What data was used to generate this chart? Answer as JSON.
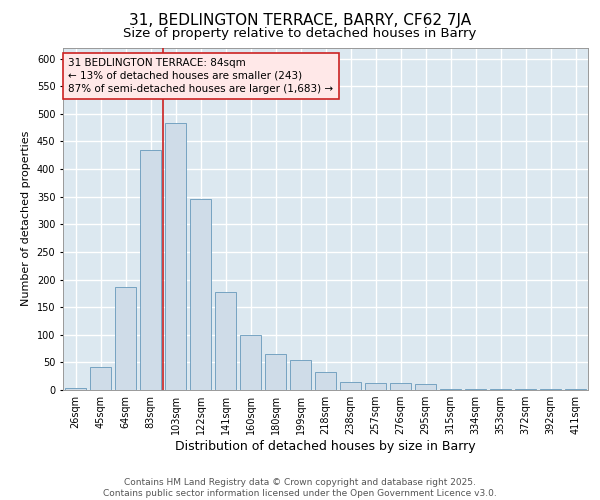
{
  "title": "31, BEDLINGTON TERRACE, BARRY, CF62 7JA",
  "subtitle": "Size of property relative to detached houses in Barry",
  "xlabel": "Distribution of detached houses by size in Barry",
  "ylabel": "Number of detached properties",
  "bar_color": "#cfdce8",
  "bar_edge_color": "#6699bb",
  "background_color": "#dce8f0",
  "grid_color": "#ffffff",
  "categories": [
    "26sqm",
    "45sqm",
    "64sqm",
    "83sqm",
    "103sqm",
    "122sqm",
    "141sqm",
    "160sqm",
    "180sqm",
    "199sqm",
    "218sqm",
    "238sqm",
    "257sqm",
    "276sqm",
    "295sqm",
    "315sqm",
    "334sqm",
    "353sqm",
    "372sqm",
    "392sqm",
    "411sqm"
  ],
  "values": [
    3,
    42,
    187,
    435,
    483,
    345,
    178,
    100,
    65,
    55,
    32,
    15,
    13,
    13,
    10,
    2,
    1,
    2,
    1,
    2,
    1
  ],
  "vline_x": 3.5,
  "annotation_text": "31 BEDLINGTON TERRACE: 84sqm\n← 13% of detached houses are smaller (243)\n87% of semi-detached houses are larger (1,683) →",
  "vline_color": "#cc2222",
  "annotation_box_facecolor": "#ffe8e8",
  "annotation_box_edgecolor": "#cc2222",
  "ylim": [
    0,
    620
  ],
  "yticks": [
    0,
    50,
    100,
    150,
    200,
    250,
    300,
    350,
    400,
    450,
    500,
    550,
    600
  ],
  "footer_text": "Contains HM Land Registry data © Crown copyright and database right 2025.\nContains public sector information licensed under the Open Government Licence v3.0.",
  "title_fontsize": 11,
  "subtitle_fontsize": 9.5,
  "xlabel_fontsize": 9,
  "ylabel_fontsize": 8,
  "tick_fontsize": 7,
  "annotation_fontsize": 7.5,
  "footer_fontsize": 6.5
}
